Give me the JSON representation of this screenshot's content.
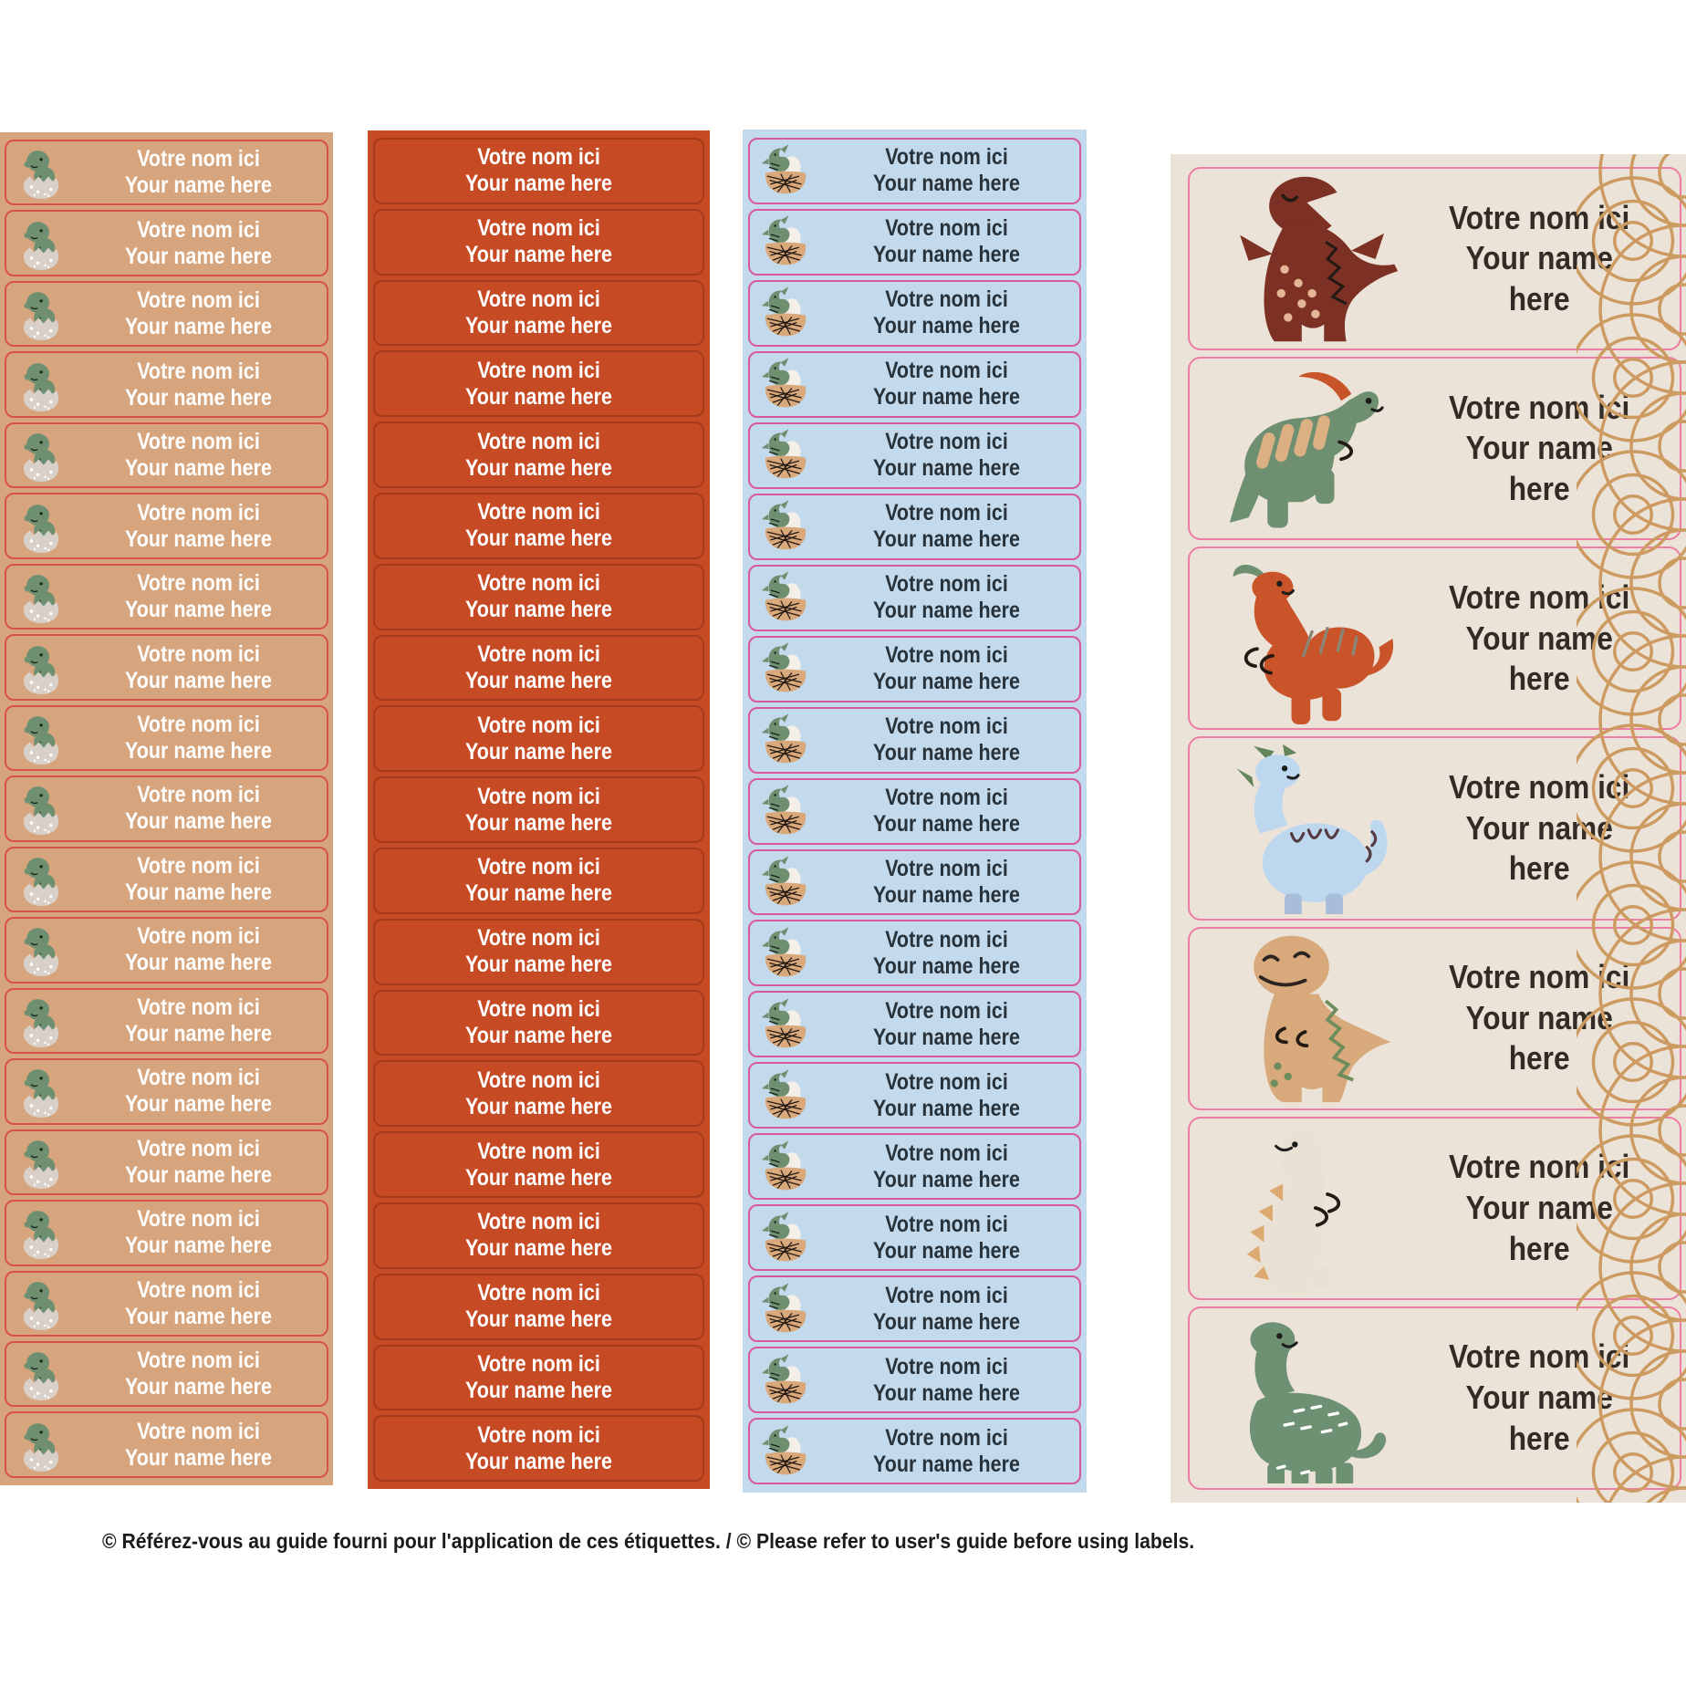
{
  "page": {
    "background": "#ffffff",
    "footer_note": "© Référez-vous au guide fourni pour l'application de ces étiquettes. / © Please refer to user's guide before using labels."
  },
  "label_text": {
    "line1": "Votre nom ici",
    "line2": "Your name here"
  },
  "sheets": {
    "tan_mini": {
      "rows": 19,
      "icon": "hatching-dino-egg",
      "colors": {
        "sheet": "#d6a57d",
        "border": "#d8524c",
        "text": "#ffffff"
      }
    },
    "red_mini": {
      "rows": 19,
      "icon": null,
      "colors": {
        "sheet": "#c64a24",
        "border": "#a7391b",
        "text": "#ffffff"
      }
    },
    "blue_mini": {
      "rows": 19,
      "icon": "pterodactyl-nest",
      "colors": {
        "sheet": "#c3daec",
        "border": "#d8589c",
        "text": "#28323a"
      }
    },
    "large": {
      "rows": 7,
      "dinos": [
        "brown-trex",
        "green-parasaurolophus",
        "orange-crested-dino",
        "blue-longneck",
        "tan-trex",
        "cream-dino",
        "green-brontosaurus"
      ],
      "colors": {
        "sheet": "#ece3d8",
        "border": "#ee7ca4",
        "text": "#332c26",
        "scallop": "#cd9b61"
      }
    }
  }
}
